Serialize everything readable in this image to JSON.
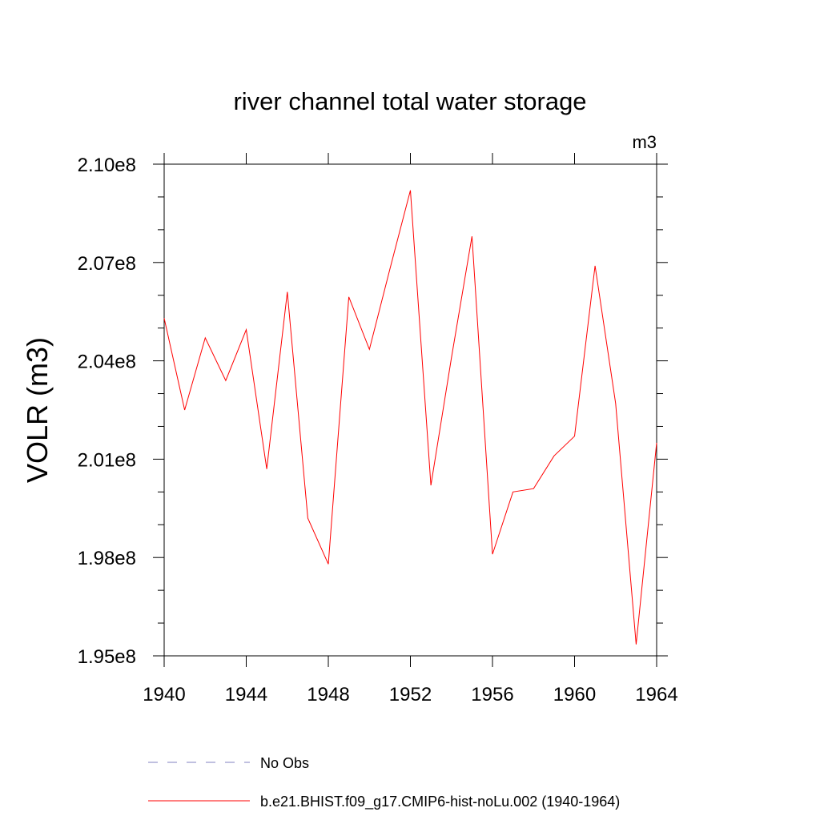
{
  "chart_data": {
    "type": "line",
    "title": "river channel total water storage",
    "units": "m3",
    "ylabel": "VOLR  (m3)",
    "xlabel": "",
    "xlim": [
      1940,
      1964
    ],
    "ylim": [
      195000000,
      210000000
    ],
    "x_ticks": [
      1940,
      1944,
      1948,
      1952,
      1956,
      1960,
      1964
    ],
    "y_ticks": [
      {
        "value": 195000000,
        "label": "1.95e8"
      },
      {
        "value": 198000000,
        "label": "1.98e8"
      },
      {
        "value": 201000000,
        "label": "2.01e8"
      },
      {
        "value": 204000000,
        "label": "2.04e8"
      },
      {
        "value": 207000000,
        "label": "2.07e8"
      },
      {
        "value": 210000000,
        "label": "2.10e8"
      }
    ],
    "x": [
      1940,
      1941,
      1942,
      1943,
      1944,
      1945,
      1946,
      1947,
      1948,
      1949,
      1950,
      1951,
      1952,
      1953,
      1954,
      1955,
      1956,
      1957,
      1958,
      1959,
      1960,
      1961,
      1962,
      1963,
      1964
    ],
    "series": [
      {
        "name": "b.e21.BHIST.f09_g17.CMIP6-hist-noLu.002 (1940-1964)",
        "color": "#ff0000",
        "values": [
          205300000,
          202500000,
          204700000,
          203400000,
          204950000,
          200700000,
          206100000,
          199200000,
          197800000,
          205950000,
          204350000,
          206800000,
          209200000,
          200200000,
          204100000,
          207800000,
          198100000,
          200000000,
          200100000,
          201100000,
          201700000,
          206900000,
          202700000,
          195350000,
          201500000
        ]
      }
    ],
    "legend": [
      {
        "label": "No Obs",
        "style": "dashed",
        "color": "#8080c0"
      },
      {
        "label": "b.e21.BHIST.f09_g17.CMIP6-hist-noLu.002 (1940-1964)",
        "style": "solid",
        "color": "#ff0000"
      }
    ],
    "legend_position": "bottom",
    "grid": false
  }
}
